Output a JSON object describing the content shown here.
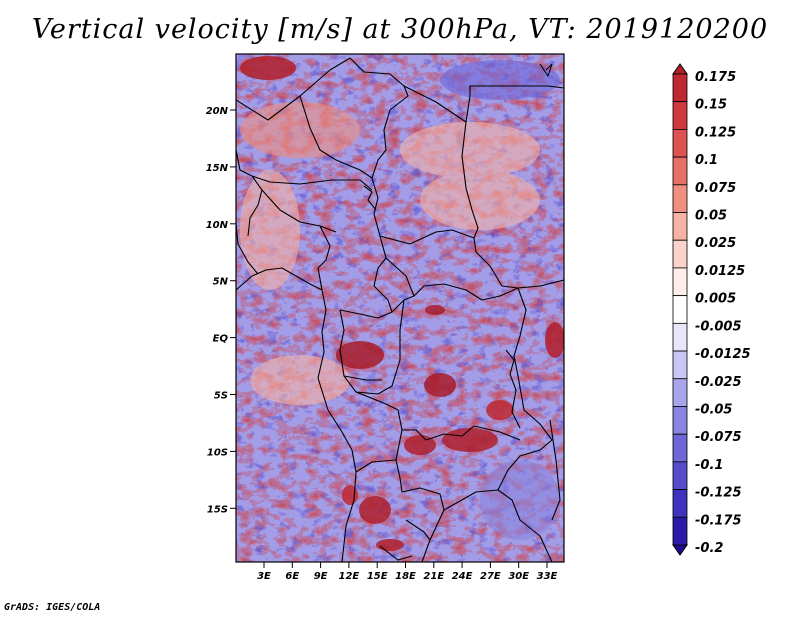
{
  "title": "Vertical velocity [m/s] at 300hPa, VT: 2019120200",
  "credit": "GrADS: IGES/COLA",
  "map": {
    "lat_labels": [
      "20N",
      "15N",
      "10N",
      "5N",
      "EQ",
      "5S",
      "10S",
      "15S"
    ],
    "lon_labels": [
      "3E",
      "6E",
      "9E",
      "12E",
      "15E",
      "18E",
      "21E",
      "24E",
      "27E",
      "30E",
      "33E"
    ]
  },
  "colorbar": {
    "labels": [
      "0.175",
      "0.15",
      "0.125",
      "0.1",
      "0.075",
      "0.05",
      "0.025",
      "0.0125",
      "0.005",
      "-0.005",
      "-0.0125",
      "-0.025",
      "-0.05",
      "-0.075",
      "-0.1",
      "-0.125",
      "-0.175",
      "-0.2"
    ],
    "colors": [
      "#b01f2a",
      "#c02831",
      "#cf3a3e",
      "#dc5250",
      "#e67065",
      "#ef8f80",
      "#f6b2a5",
      "#fbd3ca",
      "#fdeeea",
      "#ffffff",
      "#e7e6fb",
      "#c9c6f3",
      "#aaa6ea",
      "#8a84e0",
      "#6e66d6",
      "#564ccb",
      "#3f32bd",
      "#2b1aa8",
      "#1e0a93"
    ]
  }
}
